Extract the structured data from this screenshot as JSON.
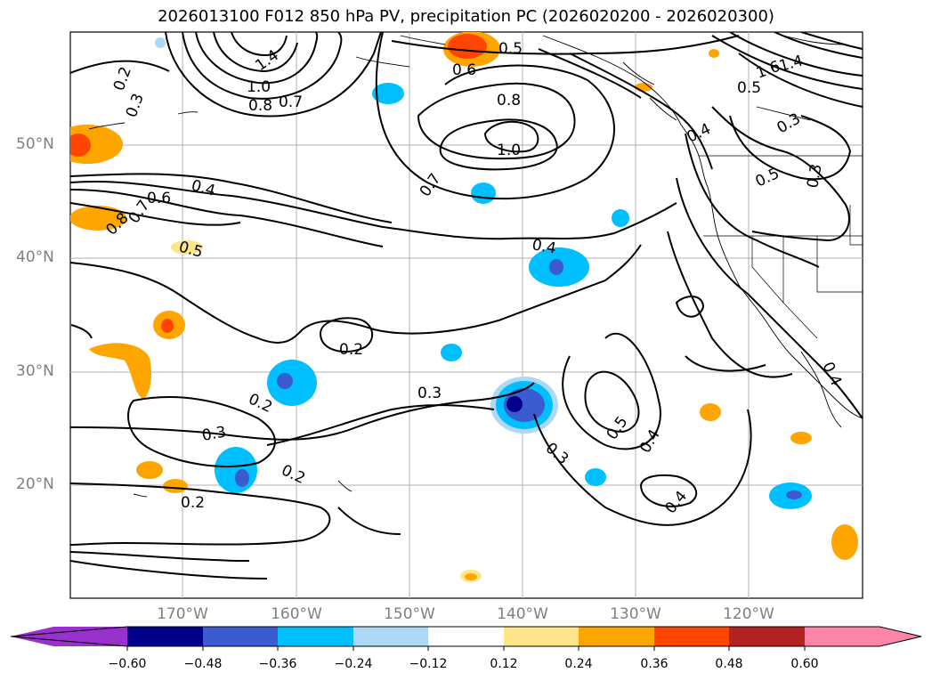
{
  "title": "2026013100 F012 850 hPa PV, precipitation PC (2026020200 - 2026020300)",
  "lat_labels": [
    "50°N",
    "40°N",
    "30°N",
    "20°N"
  ],
  "lon_labels": [
    "170°W",
    "160°W",
    "150°W",
    "140°W",
    "130°W",
    "120°W"
  ],
  "contour_labels": [
    "0.2",
    "0.3",
    "1.4",
    "1.0",
    "0.8",
    "0.7",
    "0.6",
    "0.5",
    "0.8",
    "1.0",
    "0.7",
    "1.4",
    "1.6",
    "0.5",
    "0.3",
    "0.4",
    "0.5",
    "0.3",
    "0.4",
    "0.6",
    "0.8",
    "0.7",
    "0.5",
    "0.4",
    "0.2",
    "0.2",
    "0.3",
    "0.3",
    "0.3",
    "0.2",
    "0.2",
    "0.5",
    "0.4",
    "0.4",
    "0.4"
  ],
  "colorbar": {
    "ticks": [
      "−0.60",
      "−0.48",
      "−0.36",
      "−0.24",
      "−0.12",
      "0.12",
      "0.24",
      "0.36",
      "0.48",
      "0.60"
    ],
    "colors": [
      "#9932cc",
      "#00008b",
      "#3b5bd0",
      "#00bfff",
      "#add8f6",
      "#ffffff",
      "#fde68a",
      "#ffa500",
      "#ff4500",
      "#b22222",
      "#ff85a8",
      "#ff85a8"
    ]
  }
}
